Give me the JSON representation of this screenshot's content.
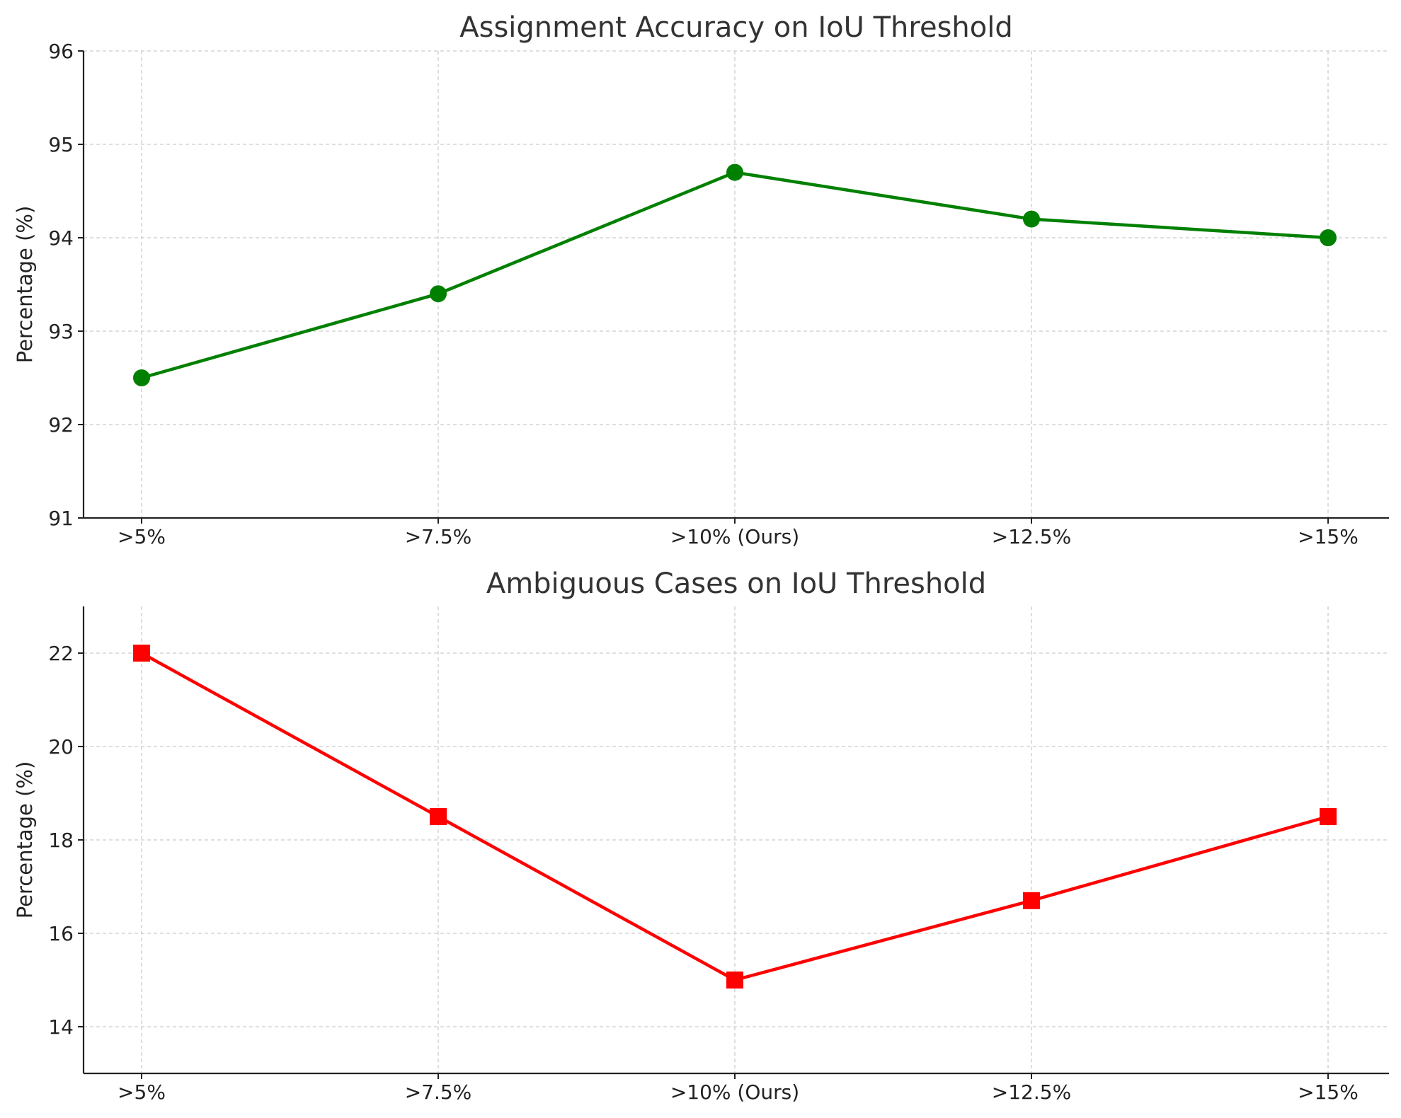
{
  "chart_data": [
    {
      "type": "line",
      "title": "Assignment Accuracy on IoU Threshold",
      "xlabel": "",
      "ylabel": "Percentage (%)",
      "categories": [
        ">5%",
        ">7.5%",
        ">10% (Ours)",
        ">12.5%",
        ">15%"
      ],
      "values": [
        92.5,
        93.4,
        94.7,
        94.2,
        94.0
      ],
      "ylim": [
        91,
        96
      ],
      "yticks": [
        91,
        92,
        93,
        94,
        95,
        96
      ],
      "marker": "circle",
      "color": "#008000",
      "grid": true
    },
    {
      "type": "line",
      "title": "Ambiguous Cases on IoU Threshold",
      "xlabel": "",
      "ylabel": "Percentage (%)",
      "categories": [
        ">5%",
        ">7.5%",
        ">10% (Ours)",
        ">12.5%",
        ">15%"
      ],
      "values": [
        22.0,
        18.5,
        15.0,
        16.7,
        18.5
      ],
      "ylim": [
        13,
        23
      ],
      "yticks": [
        14,
        16,
        18,
        20,
        22
      ],
      "marker": "square",
      "color": "#ff0000",
      "grid": true
    }
  ]
}
